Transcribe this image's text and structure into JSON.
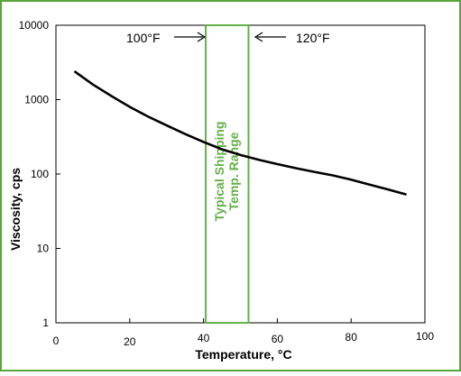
{
  "chart_data": {
    "type": "line",
    "xlabel": "Temperature, °C",
    "ylabel": "Viscosity, cps",
    "x_ticks": [
      "0",
      "20",
      "40",
      "60",
      "80",
      "100"
    ],
    "y_ticks": [
      "1",
      "10",
      "100",
      "1000",
      "10000"
    ],
    "xlim": [
      0,
      100
    ],
    "ylim": [
      1,
      10000
    ],
    "y_scale": "log",
    "grid": false,
    "series": [
      {
        "x": [
          5,
          10,
          15,
          20,
          25,
          30,
          35,
          40,
          45,
          50,
          55,
          60,
          65,
          70,
          75,
          80,
          85,
          90,
          95
        ],
        "y": [
          2400,
          1600,
          1120,
          800,
          590,
          450,
          345,
          270,
          215,
          180,
          155,
          136,
          120,
          107,
          96,
          84,
          72,
          62,
          53
        ]
      }
    ],
    "shaded_region": {
      "x_from": 40.6,
      "x_to": 52.2,
      "label_line1": "Typical Shipping",
      "label_line2": "Temp. Range"
    },
    "annotations": {
      "left": "100°F",
      "right": "120°F"
    }
  },
  "colors": {
    "frame_border": "#5aa53a",
    "region_border": "#64b04a",
    "region_text": "#64b04a",
    "line": "#000000"
  }
}
